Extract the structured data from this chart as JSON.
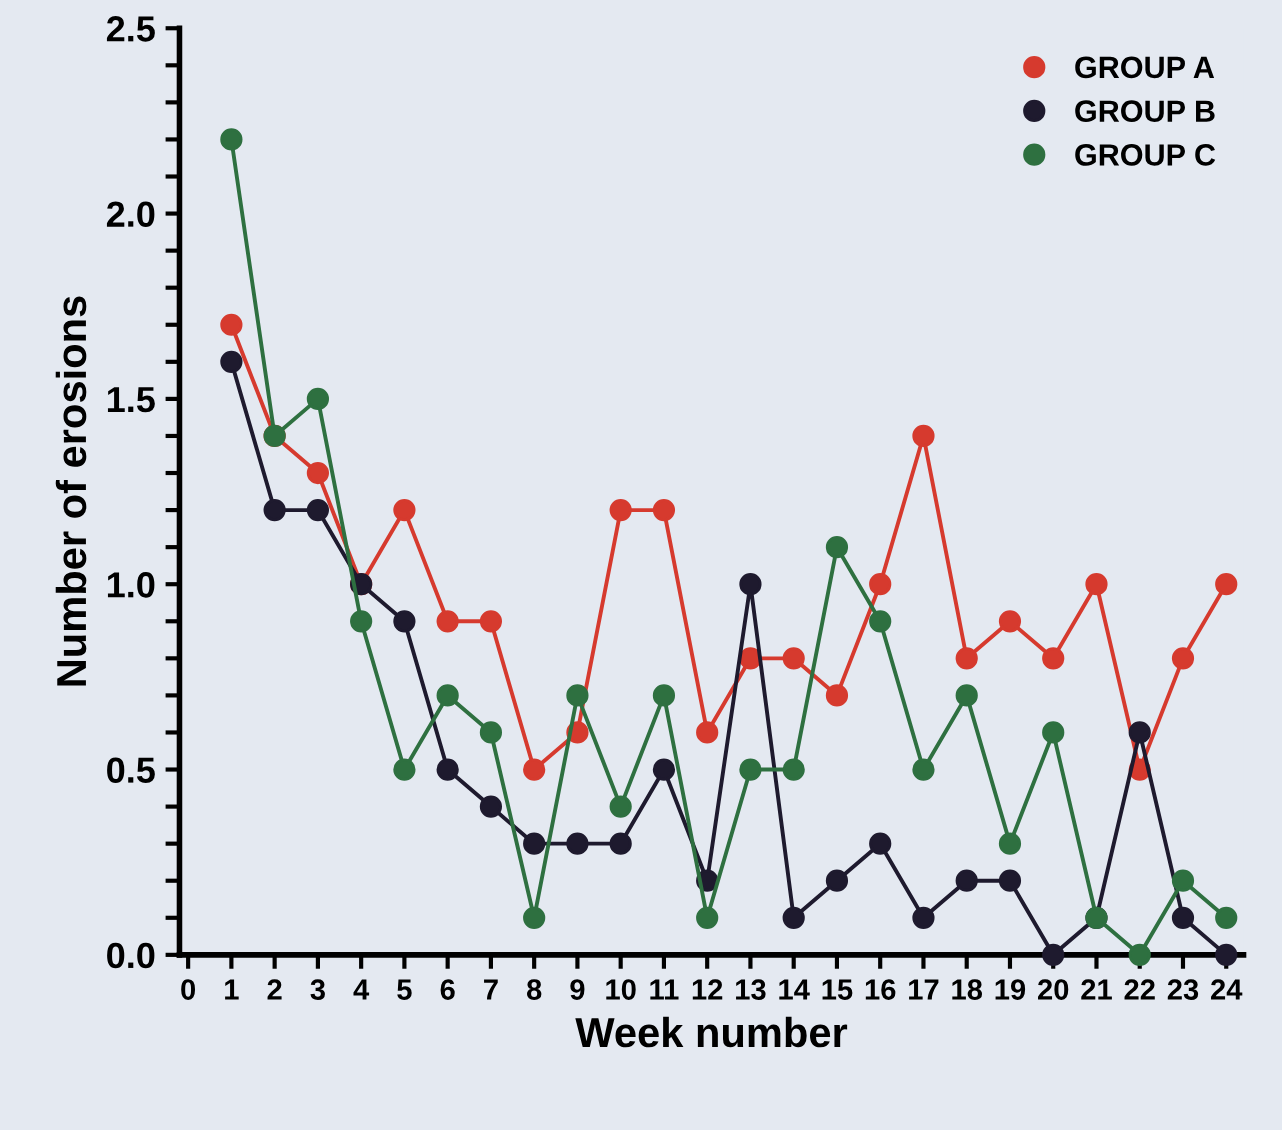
{
  "chart_data": {
    "type": "line",
    "xlabel": "Week number",
    "ylabel": "Number of erosions",
    "x": [
      1,
      2,
      3,
      4,
      5,
      6,
      7,
      8,
      9,
      10,
      11,
      12,
      13,
      14,
      15,
      16,
      17,
      18,
      19,
      20,
      21,
      22,
      23,
      24
    ],
    "series": [
      {
        "name": "GROUP A",
        "color": "#d63a2e",
        "values": [
          1.7,
          1.4,
          1.3,
          1.0,
          1.2,
          0.9,
          0.9,
          0.5,
          0.6,
          1.2,
          1.2,
          0.6,
          0.8,
          0.8,
          0.7,
          1.0,
          1.4,
          0.8,
          0.9,
          0.8,
          1.0,
          0.5,
          0.8,
          1.0
        ]
      },
      {
        "name": "GROUP B",
        "color": "#1e1a2e",
        "values": [
          1.6,
          1.2,
          1.2,
          1.0,
          0.9,
          0.5,
          0.4,
          0.3,
          0.3,
          0.3,
          0.5,
          0.2,
          1.0,
          0.1,
          0.2,
          0.3,
          0.1,
          0.2,
          0.2,
          0.0,
          0.1,
          0.6,
          0.1,
          0.0
        ]
      },
      {
        "name": "GROUP C",
        "color": "#2e7040",
        "values": [
          2.2,
          1.4,
          1.5,
          0.9,
          0.5,
          0.7,
          0.6,
          0.1,
          0.7,
          0.4,
          0.7,
          0.1,
          0.5,
          0.5,
          1.1,
          0.9,
          0.5,
          0.7,
          0.3,
          0.6,
          0.1,
          0.0,
          0.2,
          0.1
        ]
      }
    ],
    "xlim": [
      -0.2,
      24.4
    ],
    "ylim": [
      0,
      2.5
    ],
    "xticks": [
      0,
      1,
      2,
      3,
      4,
      5,
      6,
      7,
      8,
      9,
      10,
      11,
      12,
      13,
      14,
      15,
      16,
      17,
      18,
      19,
      20,
      21,
      22,
      23,
      24
    ],
    "yticks": [
      {
        "value": 0,
        "label": "0.0"
      },
      {
        "value": 0.1,
        "label": null
      },
      {
        "value": 0.2,
        "label": null
      },
      {
        "value": 0.3,
        "label": null
      },
      {
        "value": 0.4,
        "label": null
      },
      {
        "value": 0.5,
        "label": "0.5"
      },
      {
        "value": 0.6,
        "label": null
      },
      {
        "value": 0.7,
        "label": null
      },
      {
        "value": 0.8,
        "label": null
      },
      {
        "value": 0.9,
        "label": null
      },
      {
        "value": 1.0,
        "label": "1.0"
      },
      {
        "value": 1.1,
        "label": null
      },
      {
        "value": 1.2,
        "label": null
      },
      {
        "value": 1.3,
        "label": null
      },
      {
        "value": 1.4,
        "label": null
      },
      {
        "value": 1.5,
        "label": "1.5"
      },
      {
        "value": 1.6,
        "label": null
      },
      {
        "value": 1.7,
        "label": null
      },
      {
        "value": 1.8,
        "label": null
      },
      {
        "value": 1.9,
        "label": null
      },
      {
        "value": 2.0,
        "label": "2.0"
      },
      {
        "value": 2.1,
        "label": null
      },
      {
        "value": 2.2,
        "label": null
      },
      {
        "value": 2.3,
        "label": null
      },
      {
        "value": 2.4,
        "label": null
      },
      {
        "value": 2.5,
        "label": "2.5"
      }
    ],
    "marker": "circle",
    "line_style": "solid",
    "grid": false,
    "legend": "top right"
  }
}
